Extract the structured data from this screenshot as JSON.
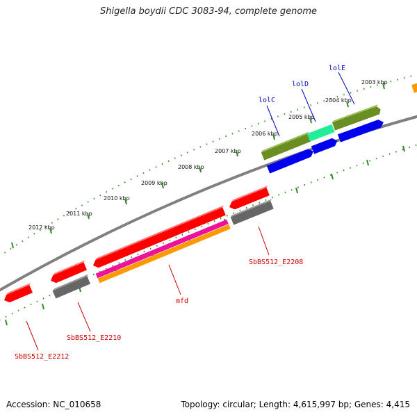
{
  "title": "Shigella boydii CDC 3083-94, complete genome",
  "footer": {
    "accession": "Accession: NC_010658",
    "summary": "Topology: circular; Length: 4,615,997 bp; Genes: 4,415"
  },
  "colors": {
    "backbone": "#808080",
    "tick": "#2e8b22",
    "label_red": "#cc0000",
    "label_blue": "#0000bb",
    "red": "#ff0000",
    "gray": "#666666",
    "magenta": "#ee1199",
    "orange": "#ff9900",
    "blue": "#0000ee",
    "olive": "#6b8e23",
    "aqua": "#22ee99"
  },
  "kbp_labels": [
    "2003 kbp",
    "2004 kbp",
    "2005 kbp",
    "2006 kbp",
    "2007 kbp",
    "2008 kbp",
    "2009 kbp",
    "2010 kbp",
    "2011 kbp",
    "2012 kbp"
  ],
  "gene_labels": {
    "lolE": "lolE",
    "lolD": "lolD",
    "lolC": "lolC",
    "e2208": "SbBS512_E2208",
    "mfd": "mfd",
    "e2210": "SbBS512_E2210",
    "e2212": "SbBS512_E2212"
  }
}
